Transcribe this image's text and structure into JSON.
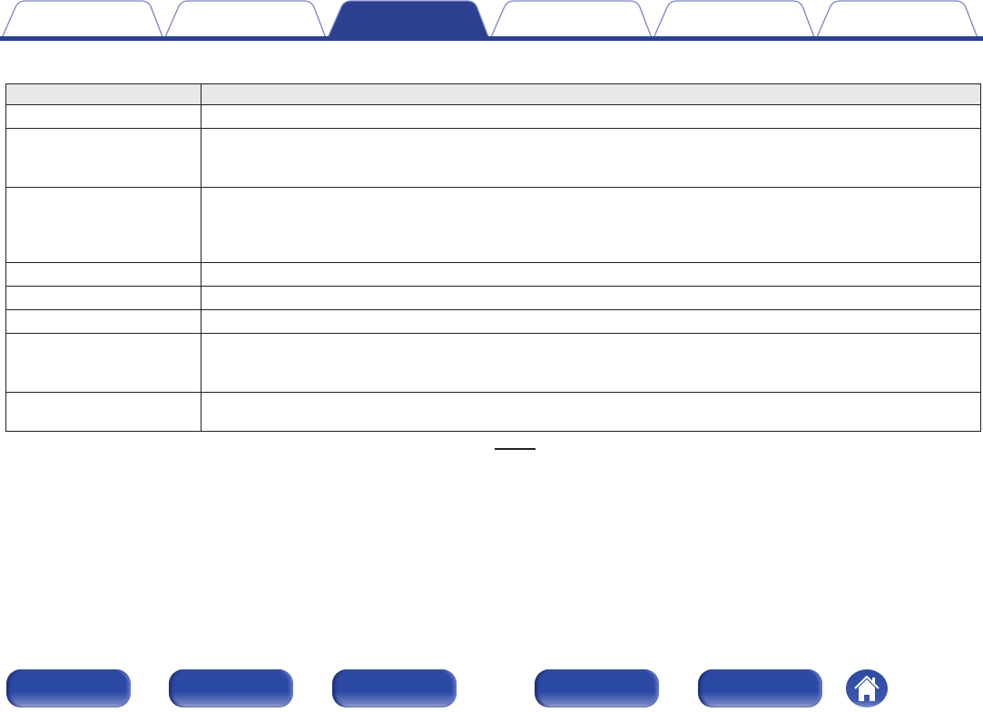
{
  "colors": {
    "accent": "#2b4190",
    "tab_outline": "#7b80c8",
    "header_bg": "#e8e8e8",
    "button": "#2c4aa3"
  },
  "tabs": {
    "active_index": 2,
    "items": [
      {
        "label": ""
      },
      {
        "label": ""
      },
      {
        "label": ""
      },
      {
        "label": ""
      },
      {
        "label": ""
      },
      {
        "label": ""
      }
    ]
  },
  "table": {
    "header": [
      "",
      ""
    ],
    "rows": [
      [
        "",
        ""
      ],
      [
        "",
        ""
      ],
      [
        "",
        ""
      ],
      [
        "",
        ""
      ],
      [
        "",
        ""
      ],
      [
        "",
        ""
      ],
      [
        "",
        ""
      ],
      [
        "",
        ""
      ]
    ]
  },
  "footer": {
    "buttons": [
      {
        "label": ""
      },
      {
        "label": ""
      },
      {
        "label": ""
      },
      {
        "label": ""
      },
      {
        "label": ""
      }
    ],
    "home_icon": "home-icon"
  }
}
